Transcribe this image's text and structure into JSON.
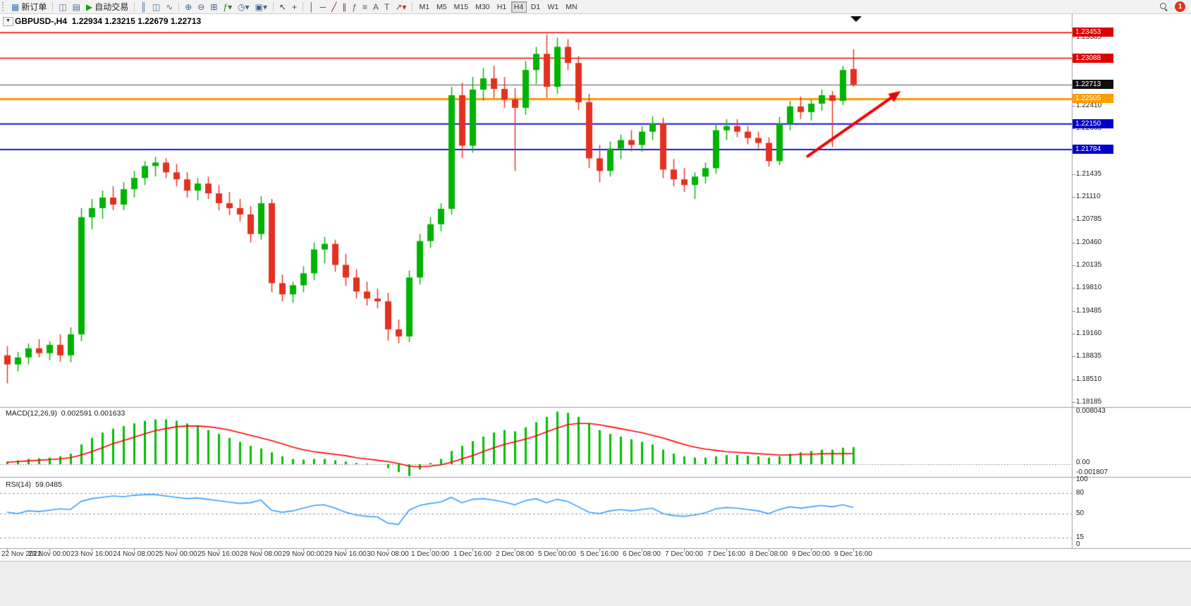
{
  "toolbar": {
    "groups": [
      {
        "items": [
          {
            "name": "new-order-button",
            "glyph": "▦",
            "color": "#3a7abd",
            "label": "新订单"
          }
        ]
      },
      {
        "items": [
          {
            "name": "charts-list-button",
            "glyph": "◫",
            "color": "#4e6e92"
          },
          {
            "name": "profiles-button",
            "glyph": "▤",
            "color": "#4e6e92"
          },
          {
            "name": "auto-trading-button",
            "glyph": "▶",
            "color": "#12a312",
            "label": "自动交易"
          }
        ]
      },
      {
        "items": [
          {
            "name": "bar-chart-button",
            "glyph": "║",
            "color": "#4e6e92"
          },
          {
            "name": "candlestick-chart-button",
            "glyph": "◫",
            "color": "#4e6e92"
          },
          {
            "name": "line-chart-button",
            "glyph": "∿",
            "color": "#4e6e92"
          }
        ]
      },
      {
        "items": [
          {
            "name": "zoom-in-button",
            "glyph": "⊕",
            "color": "#44618a"
          },
          {
            "name": "zoom-out-button",
            "glyph": "⊖",
            "color": "#44618a"
          },
          {
            "name": "tile-windows-button",
            "glyph": "⊞",
            "color": "#44618a"
          },
          {
            "name": "indicators-button",
            "glyph": "ƒ▾",
            "color": "#2f7a2f"
          },
          {
            "name": "periods-button",
            "glyph": "◷▾",
            "color": "#44618a"
          },
          {
            "name": "templates-button",
            "glyph": "▣▾",
            "color": "#44618a"
          }
        ]
      },
      {
        "items": [
          {
            "name": "cursor-button",
            "glyph": "↖",
            "color": "#444"
          },
          {
            "name": "crosshair-button",
            "glyph": "+",
            "color": "#444"
          }
        ]
      },
      {
        "items": [
          {
            "name": "vertical-line-button",
            "glyph": "│",
            "color": "#8a2a2a"
          },
          {
            "name": "horizontal-line-button",
            "glyph": "─",
            "color": "#8a2a2a"
          },
          {
            "name": "trendline-button",
            "glyph": "╱",
            "color": "#8a2a2a"
          },
          {
            "name": "channel-button",
            "glyph": "∥",
            "color": "#8a2a2a"
          },
          {
            "name": "fibonacci-button",
            "glyph": "ƒ",
            "color": "#2f7a2f"
          },
          {
            "name": "shapes-button",
            "glyph": "≡",
            "color": "#555"
          },
          {
            "name": "text-button",
            "glyph": "A",
            "color": "#555"
          },
          {
            "name": "label-button",
            "glyph": "T",
            "color": "#555"
          },
          {
            "name": "arrows-button",
            "glyph": "↗▾",
            "color": "#b03030"
          }
        ]
      }
    ],
    "timeframes": [
      "M1",
      "M5",
      "M15",
      "M30",
      "H1",
      "H4",
      "D1",
      "W1",
      "MN"
    ],
    "active_timeframe": "H4",
    "notification_count": "1"
  },
  "chart": {
    "oct_glyph": "▼",
    "symbol_period": "GBPUSD-,H4",
    "ohlc_text": "1.22934 1.23215 1.22679 1.22713",
    "macd_label": "MACD(12,26,9)",
    "macd_values": "0.002591 0.001633",
    "rsi_label": "RSI(14)",
    "rsi_value": "59.0485",
    "macd_axis": [
      "0.008043",
      "0.00",
      "-0.001807"
    ],
    "rsi_axis": [
      "100",
      "80",
      "50",
      "15",
      "0"
    ]
  },
  "chart_data": {
    "type": "candlestick",
    "symbol": "GBPUSD",
    "period": "H4",
    "ohlc_current": {
      "open": 1.22934,
      "high": 1.23215,
      "low": 1.22679,
      "close": 1.22713
    },
    "up_color": "#00b300",
    "down_color": "#e53020",
    "x_label_interval": 4,
    "x_labels": [
      "22 Nov 2022",
      "23 Nov 00:00",
      "23 Nov 16:00",
      "24 Nov 08:00",
      "25 Nov 00:00",
      "25 Nov 16:00",
      "28 Nov 08:00",
      "29 Nov 00:00",
      "29 Nov 16:00",
      "30 Nov 08:00",
      "1 Dec 00:00",
      "1 Dec 16:00",
      "2 Dec 08:00",
      "5 Dec 00:00",
      "5 Dec 16:00",
      "6 Dec 08:00",
      "7 Dec 00:00",
      "7 Dec 16:00",
      "8 Dec 08:00",
      "9 Dec 00:00",
      "9 Dec 16:00"
    ],
    "y_ticks": [
      "1.23385",
      "1.23060",
      "1.22735",
      "1.22410",
      "1.22085",
      "1.21760",
      "1.21435",
      "1.21110",
      "1.20785",
      "1.20460",
      "1.20135",
      "1.19810",
      "1.19485",
      "1.19160",
      "1.18835",
      "1.18510",
      "1.18185"
    ],
    "candles": [
      [
        1.1885,
        1.1898,
        1.1845,
        1.1872
      ],
      [
        1.1872,
        1.189,
        1.1862,
        1.1882
      ],
      [
        1.1882,
        1.1902,
        1.1872,
        1.1895
      ],
      [
        1.1895,
        1.1908,
        1.1882,
        1.1888
      ],
      [
        1.1888,
        1.1905,
        1.1878,
        1.19
      ],
      [
        1.19,
        1.1915,
        1.1876,
        1.1885
      ],
      [
        1.1885,
        1.1925,
        1.1875,
        1.1915
      ],
      [
        1.1915,
        1.2095,
        1.1905,
        1.2082
      ],
      [
        1.2082,
        1.2108,
        1.2065,
        1.2095
      ],
      [
        1.2095,
        1.212,
        1.208,
        1.211
      ],
      [
        1.211,
        1.2126,
        1.2092,
        1.21
      ],
      [
        1.21,
        1.2132,
        1.2092,
        1.2122
      ],
      [
        1.2122,
        1.2148,
        1.211,
        1.2138
      ],
      [
        1.2138,
        1.2162,
        1.2128,
        1.2155
      ],
      [
        1.2155,
        1.2168,
        1.214,
        1.216
      ],
      [
        1.216,
        1.2166,
        1.2138,
        1.2146
      ],
      [
        1.2146,
        1.2158,
        1.2126,
        1.2136
      ],
      [
        1.2136,
        1.2146,
        1.211,
        1.212
      ],
      [
        1.212,
        1.2138,
        1.2106,
        1.213
      ],
      [
        1.213,
        1.214,
        1.2108,
        1.2116
      ],
      [
        1.2116,
        1.2128,
        1.2092,
        1.2102
      ],
      [
        1.2102,
        1.2118,
        1.2085,
        1.2095
      ],
      [
        1.2095,
        1.2108,
        1.2076,
        1.2086
      ],
      [
        1.2086,
        1.2098,
        1.2046,
        1.2058
      ],
      [
        1.2058,
        1.2112,
        1.205,
        1.2102
      ],
      [
        1.2102,
        1.2108,
        1.1975,
        1.1988
      ],
      [
        1.1988,
        1.2,
        1.1962,
        1.1972
      ],
      [
        1.1972,
        1.199,
        1.196,
        1.1985
      ],
      [
        1.1985,
        1.2012,
        1.1975,
        1.2002
      ],
      [
        1.2002,
        1.2046,
        1.1992,
        1.2036
      ],
      [
        1.2036,
        1.2054,
        1.2016,
        1.2044
      ],
      [
        1.2044,
        1.205,
        1.2004,
        1.2014
      ],
      [
        1.2014,
        1.203,
        1.1984,
        1.1996
      ],
      [
        1.1996,
        1.2008,
        1.1966,
        1.1976
      ],
      [
        1.1976,
        1.199,
        1.1956,
        1.1966
      ],
      [
        1.1966,
        1.198,
        1.1952,
        1.1962
      ],
      [
        1.1962,
        1.1974,
        1.1906,
        1.1922
      ],
      [
        1.1922,
        1.1936,
        1.1902,
        1.1912
      ],
      [
        1.1912,
        1.2006,
        1.1904,
        1.1996
      ],
      [
        1.1996,
        1.2058,
        1.1986,
        1.2048
      ],
      [
        1.2048,
        1.2082,
        1.2038,
        1.2072
      ],
      [
        1.2072,
        1.2102,
        1.2062,
        1.2094
      ],
      [
        1.2094,
        1.2268,
        1.2086,
        1.2256
      ],
      [
        1.2256,
        1.2274,
        1.2166,
        1.2184
      ],
      [
        1.2184,
        1.2282,
        1.2174,
        1.2264
      ],
      [
        1.2264,
        1.2295,
        1.2248,
        1.228
      ],
      [
        1.228,
        1.2298,
        1.2252,
        1.2265
      ],
      [
        1.2265,
        1.2282,
        1.2238,
        1.225
      ],
      [
        1.225,
        1.2266,
        1.2148,
        1.2238
      ],
      [
        1.2238,
        1.2305,
        1.2228,
        1.2292
      ],
      [
        1.2292,
        1.2325,
        1.2272,
        1.2315
      ],
      [
        1.2315,
        1.2342,
        1.2252,
        1.2268
      ],
      [
        1.2268,
        1.2338,
        1.2258,
        1.2325
      ],
      [
        1.2325,
        1.2336,
        1.2292,
        1.2302
      ],
      [
        1.2302,
        1.2312,
        1.2235,
        1.2246
      ],
      [
        1.2246,
        1.2258,
        1.2152,
        1.2166
      ],
      [
        1.2166,
        1.2185,
        1.2132,
        1.2148
      ],
      [
        1.2148,
        1.219,
        1.214,
        1.218
      ],
      [
        1.218,
        1.22,
        1.2165,
        1.2192
      ],
      [
        1.2192,
        1.2206,
        1.2176,
        1.2185
      ],
      [
        1.2185,
        1.2212,
        1.2175,
        1.2204
      ],
      [
        1.2204,
        1.2226,
        1.2192,
        1.2216
      ],
      [
        1.2216,
        1.2224,
        1.2138,
        1.215
      ],
      [
        1.215,
        1.2165,
        1.2126,
        1.2136
      ],
      [
        1.2136,
        1.2152,
        1.2118,
        1.2128
      ],
      [
        1.2128,
        1.2146,
        1.2108,
        1.214
      ],
      [
        1.214,
        1.216,
        1.213,
        1.2152
      ],
      [
        1.2152,
        1.2216,
        1.2144,
        1.2206
      ],
      [
        1.2206,
        1.2222,
        1.2192,
        1.2212
      ],
      [
        1.2212,
        1.2222,
        1.2196,
        1.2204
      ],
      [
        1.2204,
        1.2212,
        1.2186,
        1.2195
      ],
      [
        1.2195,
        1.2204,
        1.218,
        1.2188
      ],
      [
        1.2188,
        1.2196,
        1.2154,
        1.2162
      ],
      [
        1.2162,
        1.2225,
        1.2156,
        1.2215
      ],
      [
        1.2215,
        1.2248,
        1.2206,
        1.224
      ],
      [
        1.224,
        1.2254,
        1.2222,
        1.2232
      ],
      [
        1.2232,
        1.225,
        1.222,
        1.2244
      ],
      [
        1.2244,
        1.2264,
        1.2234,
        1.2256
      ],
      [
        1.2256,
        1.2262,
        1.2182,
        1.2248
      ],
      [
        1.2248,
        1.2298,
        1.2242,
        1.2292
      ],
      [
        1.22934,
        1.23215,
        1.22679,
        1.22713
      ]
    ],
    "hlines": [
      {
        "price": 1.23453,
        "color": "#f40000",
        "width": 1.5,
        "label": "1.23453",
        "tag_bg": "#dd0000"
      },
      {
        "price": 1.23088,
        "color": "#f40000",
        "width": 1.5,
        "label": "1.23088",
        "tag_bg": "#dd0000"
      },
      {
        "price": 1.22505,
        "color": "#ff9c00",
        "width": 3,
        "label": "1.22505",
        "tag_bg": "#ff9c00"
      },
      {
        "price": 1.2215,
        "color": "#1616d6",
        "width": 2,
        "label": "1.22150",
        "tag_bg": "#0000cd"
      },
      {
        "price": 1.21784,
        "color": "#1616d6",
        "width": 2,
        "label": "1.21784",
        "tag_bg": "#0000cd"
      }
    ],
    "current_price": {
      "price": 1.22713,
      "label": "1.22713",
      "tag_bg": "#101010",
      "line_color": "#555555"
    },
    "macd": {
      "label": "MACD(12,26,9)",
      "main": 0.002591,
      "signal_value": 0.001633,
      "max": 0.008043,
      "min": -0.001807,
      "hist_color": "#00c000",
      "signal_color": "#ff0000",
      "histogram": [
        0.0004,
        0.0006,
        0.0008,
        0.0009,
        0.001,
        0.0012,
        0.0016,
        0.003,
        0.004,
        0.0048,
        0.0054,
        0.0058,
        0.0062,
        0.0066,
        0.0068,
        0.0068,
        0.0066,
        0.0062,
        0.0058,
        0.0052,
        0.0046,
        0.004,
        0.0034,
        0.0028,
        0.0024,
        0.0018,
        0.0012,
        0.0008,
        0.0007,
        0.0008,
        0.0008,
        0.0006,
        0.0004,
        0.0002,
        0.0001,
        0.0,
        -0.0006,
        -0.0012,
        -0.0018,
        -0.0008,
        0.0002,
        0.0008,
        0.002,
        0.0028,
        0.0035,
        0.0042,
        0.0048,
        0.0052,
        0.005,
        0.0056,
        0.0064,
        0.0072,
        0.008,
        0.0078,
        0.0072,
        0.0062,
        0.0052,
        0.0046,
        0.0042,
        0.0038,
        0.0034,
        0.003,
        0.0022,
        0.0016,
        0.0012,
        0.001,
        0.001,
        0.0012,
        0.0014,
        0.0014,
        0.0013,
        0.0012,
        0.001,
        0.0012,
        0.0016,
        0.0018,
        0.002,
        0.0022,
        0.0022,
        0.0025,
        0.002591
      ],
      "signal": [
        0.0003,
        0.0004,
        0.0005,
        0.0006,
        0.0007,
        0.0008,
        0.001,
        0.0014,
        0.0019,
        0.0025,
        0.0031,
        0.0036,
        0.0041,
        0.0046,
        0.0051,
        0.0054,
        0.0057,
        0.0058,
        0.0058,
        0.0057,
        0.0055,
        0.0052,
        0.0048,
        0.0044,
        0.004,
        0.0036,
        0.0031,
        0.0026,
        0.0022,
        0.0019,
        0.0017,
        0.0015,
        0.0013,
        0.001,
        0.0008,
        0.0006,
        0.0004,
        0.0001,
        -0.0003,
        -0.0004,
        -0.0003,
        -0.0001,
        0.0003,
        0.0008,
        0.0013,
        0.0019,
        0.0025,
        0.003,
        0.0034,
        0.0038,
        0.0043,
        0.0049,
        0.0055,
        0.006,
        0.0062,
        0.0062,
        0.006,
        0.0057,
        0.0054,
        0.0051,
        0.0048,
        0.0044,
        0.004,
        0.0035,
        0.003,
        0.0026,
        0.0023,
        0.0021,
        0.0019,
        0.0018,
        0.0017,
        0.0016,
        0.0015,
        0.0014,
        0.0014,
        0.0015,
        0.0015,
        0.0016,
        0.0016,
        0.0016,
        0.001633
      ]
    },
    "rsi": {
      "label": "RSI(14)",
      "value": 59.0485,
      "levels": [
        80,
        50,
        15
      ],
      "line_color": "#3aa0ff",
      "values": [
        52,
        50,
        54,
        53,
        55,
        57,
        56,
        68,
        72,
        74,
        76,
        75,
        77,
        78,
        78,
        76,
        74,
        72,
        73,
        71,
        69,
        67,
        65,
        66,
        70,
        55,
        52,
        54,
        58,
        62,
        63,
        58,
        52,
        48,
        46,
        45,
        36,
        34,
        55,
        62,
        65,
        67,
        74,
        66,
        71,
        72,
        70,
        67,
        63,
        69,
        72,
        66,
        71,
        68,
        60,
        52,
        50,
        54,
        56,
        54,
        56,
        58,
        50,
        47,
        46,
        48,
        51,
        57,
        59,
        58,
        56,
        54,
        50,
        56,
        60,
        58,
        60,
        62,
        60,
        63,
        59.05
      ]
    },
    "arrow": {
      "x1_index": 75.6,
      "y1_price": 1.2168,
      "x2_index": 84.5,
      "y2_price": 1.2262,
      "color": "#f40000"
    }
  }
}
